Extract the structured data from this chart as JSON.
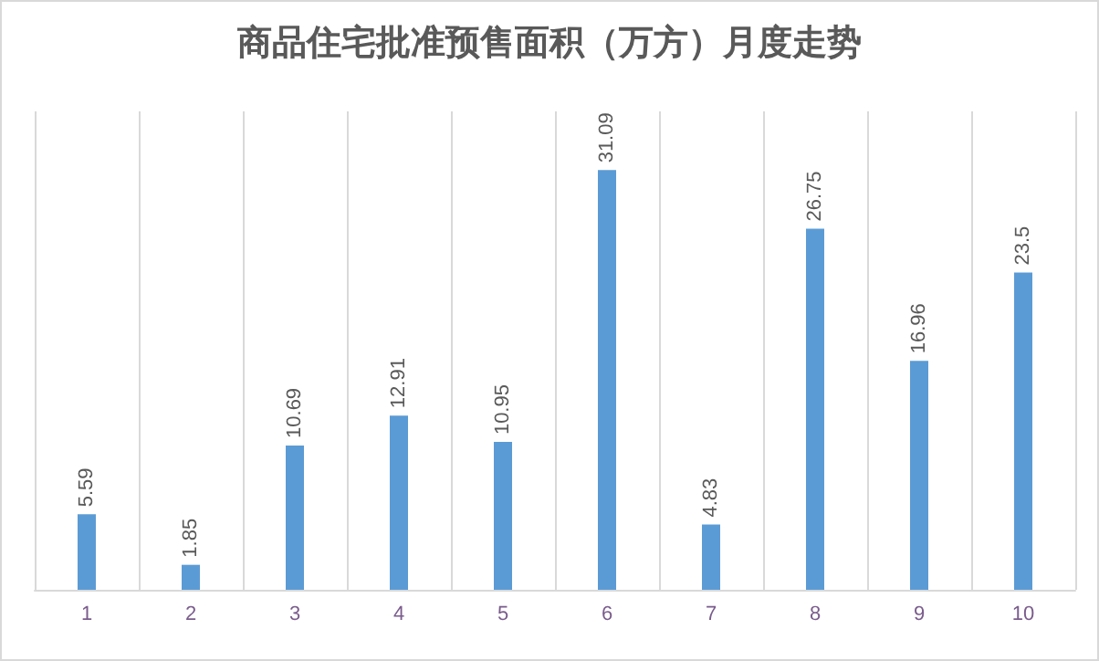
{
  "chart_data": {
    "type": "bar",
    "title": "商品住宅批准预售面积（万方）月度走势",
    "categories": [
      "1",
      "2",
      "3",
      "4",
      "5",
      "6",
      "7",
      "8",
      "9",
      "10"
    ],
    "values": [
      5.59,
      1.85,
      10.69,
      12.91,
      10.95,
      31.09,
      4.83,
      26.75,
      16.96,
      23.5
    ],
    "color": "#5b9bd5",
    "data_labels": true,
    "grid": "x"
  }
}
